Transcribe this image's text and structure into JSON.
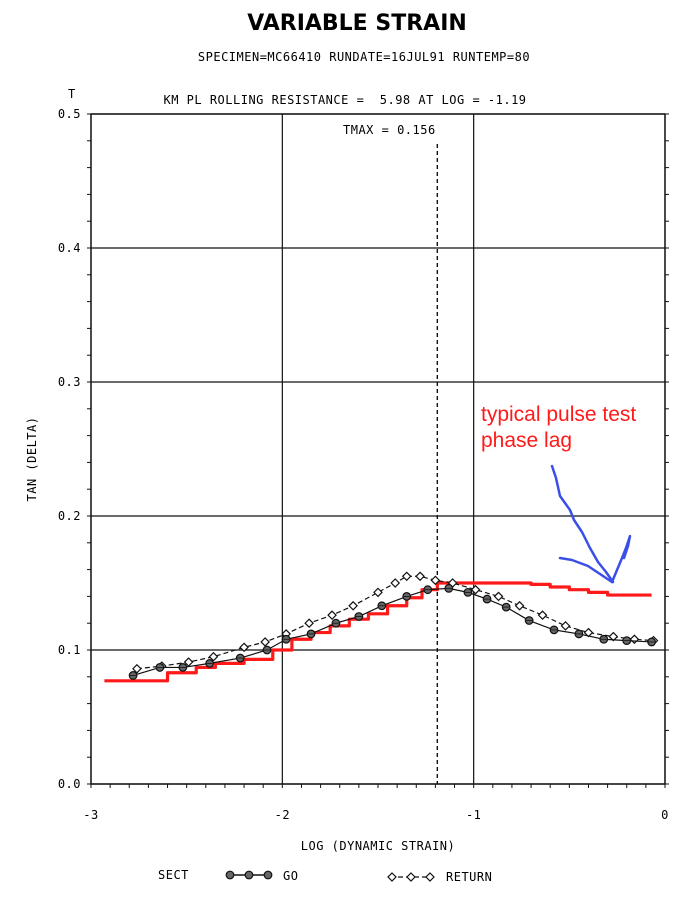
{
  "chart_data": {
    "type": "line",
    "title": "VARIABLE STRAIN",
    "subtitle": "SPECIMEN=MC66410 RUNDATE=16JUL91 RUNTEMP=80",
    "header_line": "KM PL ROLLING RESISTANCE =  5.98 AT LOG = -1.19",
    "tmax_label": "TMAX = 0.156",
    "corner_label": "T",
    "xlabel": "LOG (DYNAMIC STRAIN)",
    "ylabel": "TAN (DELTA)",
    "xlim": [
      -3,
      0
    ],
    "ylim": [
      0,
      0.5
    ],
    "xticks": [
      -3,
      -2,
      -1,
      0
    ],
    "xtick_labels": [
      "-3",
      "-2",
      "-1",
      "0"
    ],
    "yticks": [
      0.0,
      0.1,
      0.2,
      0.3,
      0.4,
      0.5
    ],
    "ytick_labels": [
      "0.0",
      "0.1",
      "0.2",
      "0.3",
      "0.4",
      "0.5"
    ],
    "grid": true,
    "vline_x": -1.19,
    "legend": {
      "prefix": "SECT",
      "placement": "bottom",
      "items": [
        {
          "label": "GO",
          "marker": "filled-circle",
          "line": "solid"
        },
        {
          "label": "RETURN",
          "marker": "open-diamond",
          "line": "dashed"
        }
      ]
    },
    "series": [
      {
        "name": "GO",
        "color": "#111111",
        "x": [
          -2.78,
          -2.64,
          -2.52,
          -2.38,
          -2.22,
          -2.08,
          -1.98,
          -1.85,
          -1.72,
          -1.6,
          -1.48,
          -1.35,
          -1.24,
          -1.13,
          -1.03,
          -0.93,
          -0.83,
          -0.71,
          -0.58,
          -0.45,
          -0.32,
          -0.2,
          -0.07
        ],
        "y": [
          0.081,
          0.087,
          0.087,
          0.09,
          0.094,
          0.1,
          0.108,
          0.112,
          0.12,
          0.125,
          0.133,
          0.14,
          0.145,
          0.146,
          0.143,
          0.138,
          0.132,
          0.122,
          0.115,
          0.112,
          0.108,
          0.107,
          0.106
        ]
      },
      {
        "name": "RETURN",
        "color": "#111111",
        "x": [
          -2.76,
          -2.63,
          -2.49,
          -2.36,
          -2.2,
          -2.09,
          -1.98,
          -1.86,
          -1.74,
          -1.63,
          -1.5,
          -1.41,
          -1.35,
          -1.28,
          -1.2,
          -1.11,
          -0.99,
          -0.87,
          -0.76,
          -0.64,
          -0.52,
          -0.4,
          -0.27,
          -0.16,
          -0.06
        ],
        "y": [
          0.086,
          0.088,
          0.091,
          0.095,
          0.102,
          0.106,
          0.112,
          0.12,
          0.126,
          0.133,
          0.143,
          0.15,
          0.155,
          0.155,
          0.152,
          0.15,
          0.145,
          0.14,
          0.133,
          0.126,
          0.118,
          0.113,
          0.11,
          0.108,
          0.107
        ]
      }
    ],
    "annotation": {
      "text_line1": "typical pulse test",
      "text_line2": "phase lag",
      "color": "#ff1a1a",
      "arrow_color": "#3a4fe8",
      "red_curve": {
        "x": [
          -2.93,
          -2.75,
          -2.6,
          -2.45,
          -2.35,
          -2.2,
          -2.05,
          -1.95,
          -1.85,
          -1.75,
          -1.65,
          -1.55,
          -1.45,
          -1.35,
          -1.27,
          -1.19,
          -1.1,
          -1.0,
          -0.9,
          -0.8,
          -0.7,
          -0.6,
          -0.5,
          -0.4,
          -0.3,
          -0.2,
          -0.07
        ],
        "y": [
          0.077,
          0.077,
          0.083,
          0.087,
          0.09,
          0.093,
          0.1,
          0.108,
          0.113,
          0.118,
          0.123,
          0.127,
          0.133,
          0.139,
          0.145,
          0.15,
          0.15,
          0.15,
          0.15,
          0.15,
          0.149,
          0.147,
          0.145,
          0.143,
          0.141,
          0.141,
          0.141
        ]
      }
    }
  }
}
